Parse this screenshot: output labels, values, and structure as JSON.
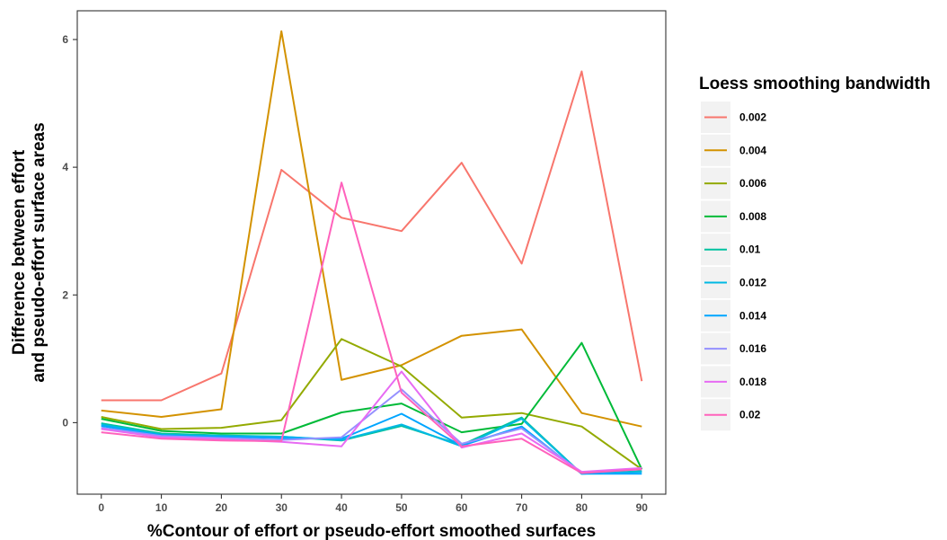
{
  "chart_data": {
    "type": "line",
    "title": "",
    "xlabel": "%Contour of effort or pseudo-effort smoothed surfaces",
    "ylabel_lines": [
      "Difference between effort",
      "and pseudo-effort surface areas"
    ],
    "x": [
      0,
      10,
      20,
      30,
      40,
      50,
      60,
      70,
      80,
      90
    ],
    "xlim": [
      -4,
      94
    ],
    "ylim": [
      -1.12,
      6.45
    ],
    "x_ticks": [
      0,
      10,
      20,
      30,
      40,
      50,
      60,
      70,
      80,
      90
    ],
    "y_ticks": [
      0,
      2,
      4,
      6
    ],
    "grid": false,
    "legend": {
      "title": "Loess smoothing bandwidth",
      "position": "right"
    },
    "series": [
      {
        "name": "0.002",
        "color": "#F8766D",
        "values": [
          0.35,
          0.35,
          0.77,
          3.96,
          3.21,
          3.0,
          4.07,
          2.49,
          5.5,
          0.65
        ]
      },
      {
        "name": "0.004",
        "color": "#D39200",
        "values": [
          0.19,
          0.09,
          0.21,
          6.13,
          0.67,
          0.9,
          1.36,
          1.46,
          0.15,
          -0.06
        ]
      },
      {
        "name": "0.006",
        "color": "#93AA00",
        "values": [
          0.09,
          -0.1,
          -0.08,
          0.04,
          1.31,
          0.88,
          0.08,
          0.15,
          -0.06,
          -0.73
        ]
      },
      {
        "name": "0.008",
        "color": "#00BA38",
        "values": [
          0.06,
          -0.13,
          -0.17,
          -0.17,
          0.16,
          0.3,
          -0.15,
          -0.02,
          1.25,
          -0.73
        ]
      },
      {
        "name": "0.01",
        "color": "#00C19F",
        "values": [
          -0.01,
          -0.17,
          -0.2,
          -0.22,
          -0.28,
          -0.05,
          -0.35,
          0.08,
          -0.8,
          -0.76
        ]
      },
      {
        "name": "0.012",
        "color": "#00B9E3",
        "values": [
          -0.03,
          -0.19,
          -0.21,
          -0.22,
          -0.27,
          -0.03,
          -0.37,
          0.06,
          -0.8,
          -0.77
        ]
      },
      {
        "name": "0.014",
        "color": "#00A5FF",
        "values": [
          -0.05,
          -0.2,
          -0.22,
          -0.24,
          -0.25,
          0.14,
          -0.36,
          -0.06,
          -0.8,
          -0.8
        ]
      },
      {
        "name": "0.016",
        "color": "#9590FF",
        "values": [
          -0.08,
          -0.21,
          -0.24,
          -0.27,
          -0.23,
          0.52,
          -0.33,
          -0.09,
          -0.78,
          -0.73
        ]
      },
      {
        "name": "0.018",
        "color": "#E76BF3",
        "values": [
          -0.1,
          -0.23,
          -0.26,
          -0.3,
          -0.37,
          0.8,
          -0.39,
          -0.17,
          -0.77,
          -0.71
        ]
      },
      {
        "name": "0.02",
        "color": "#FF62BC",
        "values": [
          -0.15,
          -0.25,
          -0.28,
          -0.29,
          3.76,
          0.47,
          -0.37,
          -0.25,
          -0.79,
          -0.73
        ]
      }
    ]
  }
}
